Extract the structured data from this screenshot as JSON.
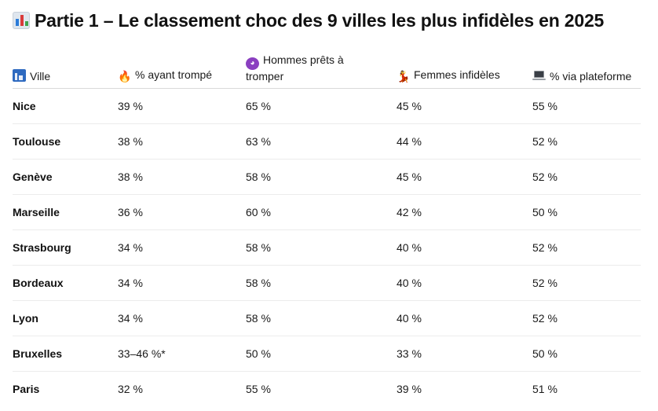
{
  "title": {
    "icon": "bar-chart-icon",
    "text": "Partie 1 – Le classement choc des 9 villes les plus infidèles en 2025"
  },
  "table": {
    "headers": [
      {
        "icon": "cityscape-icon",
        "glyph": "",
        "label": "Ville"
      },
      {
        "icon": "fire-icon",
        "glyph": "🔥",
        "label": "% ayant trompé"
      },
      {
        "icon": "devil-icon",
        "glyph": "😈",
        "label": "Hommes prêts à tromper"
      },
      {
        "icon": "dancer-icon",
        "glyph": "💃",
        "label": "Femmes infidèles"
      },
      {
        "icon": "laptop-icon",
        "glyph": "",
        "label": "% via plateforme"
      }
    ],
    "rows": [
      [
        "Nice",
        "39 %",
        "65 %",
        "45 %",
        "55 %"
      ],
      [
        "Toulouse",
        "38 %",
        "63 %",
        "44 %",
        "52 %"
      ],
      [
        "Genève",
        "38 %",
        "58 %",
        "45 %",
        "52 %"
      ],
      [
        "Marseille",
        "36 %",
        "60 %",
        "42 %",
        "50 %"
      ],
      [
        "Strasbourg",
        "34 %",
        "58 %",
        "40 %",
        "52 %"
      ],
      [
        "Bordeaux",
        "34 %",
        "58 %",
        "40 %",
        "52 %"
      ],
      [
        "Lyon",
        "34 %",
        "58 %",
        "40 %",
        "52 %"
      ],
      [
        "Bruxelles",
        "33–46 %*",
        "50 %",
        "33 %",
        "50 %"
      ],
      [
        "Paris",
        "32 %",
        "55 %",
        "39 %",
        "51 %"
      ]
    ]
  }
}
